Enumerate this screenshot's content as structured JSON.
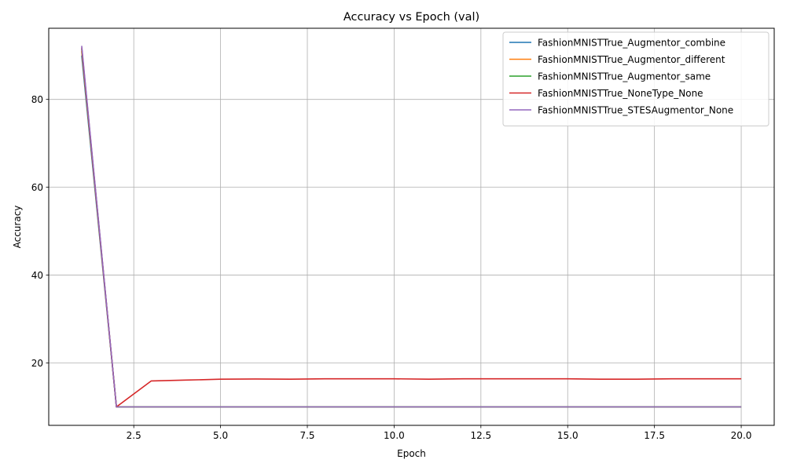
{
  "chart_data": {
    "type": "line",
    "title": "Accuracy vs Epoch (val)",
    "xlabel": "Epoch",
    "ylabel": "Accuracy",
    "xlim": [
      0.05,
      20.95
    ],
    "ylim": [
      5.8,
      96.2
    ],
    "xticks": [
      2.5,
      5.0,
      7.5,
      10.0,
      12.5,
      15.0,
      17.5,
      20.0
    ],
    "xtick_labels": [
      "2.5",
      "5.0",
      "7.5",
      "10.0",
      "12.5",
      "15.0",
      "17.5",
      "20.0"
    ],
    "yticks": [
      20,
      40,
      60,
      80
    ],
    "ytick_labels": [
      "20",
      "40",
      "60",
      "80"
    ],
    "grid": true,
    "legend_position": "top-right",
    "x": [
      1,
      2,
      3,
      4,
      5,
      6,
      7,
      8,
      9,
      10,
      11,
      12,
      13,
      14,
      15,
      16,
      17,
      18,
      19,
      20
    ],
    "series": [
      {
        "name": "FashionMNISTTrue_Augmentor_combine",
        "color": "#1f77b4",
        "values": [
          90.0,
          10.0,
          10.0,
          10.0,
          10.0,
          10.0,
          10.0,
          10.0,
          10.0,
          10.0,
          10.0,
          10.0,
          10.0,
          10.0,
          10.0,
          10.0,
          10.0,
          10.0,
          10.0,
          10.0
        ]
      },
      {
        "name": "FashionMNISTTrue_Augmentor_different",
        "color": "#ff7f0e",
        "values": [
          91.0,
          10.0,
          10.0,
          10.0,
          10.0,
          10.0,
          10.0,
          10.0,
          10.0,
          10.0,
          10.0,
          10.0,
          10.0,
          10.0,
          10.0,
          10.0,
          10.0,
          10.0,
          10.0,
          10.0
        ]
      },
      {
        "name": "FashionMNISTTrue_Augmentor_same",
        "color": "#2ca02c",
        "values": [
          91.5,
          10.0,
          10.0,
          10.0,
          10.0,
          10.0,
          10.0,
          10.0,
          10.0,
          10.0,
          10.0,
          10.0,
          10.0,
          10.0,
          10.0,
          10.0,
          10.0,
          10.0,
          10.0,
          10.0
        ]
      },
      {
        "name": "FashionMNISTTrue_NoneType_None",
        "color": "#d62728",
        "values": [
          91.8,
          10.0,
          15.9,
          16.1,
          16.3,
          16.35,
          16.3,
          16.4,
          16.4,
          16.4,
          16.3,
          16.4,
          16.4,
          16.4,
          16.4,
          16.3,
          16.3,
          16.4,
          16.4,
          16.4
        ]
      },
      {
        "name": "FashionMNISTTrue_STESAugmentor_None",
        "color": "#9467bd",
        "values": [
          92.2,
          10.0,
          10.0,
          10.0,
          10.0,
          10.0,
          10.0,
          10.0,
          10.0,
          10.0,
          10.0,
          10.0,
          10.0,
          10.0,
          10.0,
          10.0,
          10.0,
          10.0,
          10.0,
          10.0
        ]
      }
    ]
  }
}
